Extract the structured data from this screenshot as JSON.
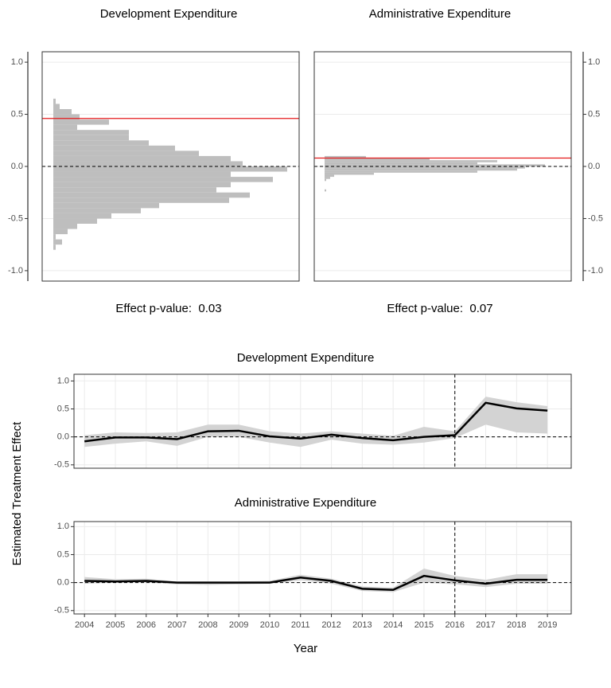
{
  "chart_data": [
    {
      "type": "histogram",
      "title": "Development Expenditure",
      "annotation": "Effect p-value:  0.03",
      "bins": [
        -0.8,
        -0.75,
        -0.7,
        -0.65,
        -0.6,
        -0.55,
        -0.5,
        -0.45,
        -0.4,
        -0.35,
        -0.3,
        -0.25,
        -0.2,
        -0.15,
        -0.1,
        -0.05,
        0,
        0.05,
        0.1,
        0.15,
        0.2,
        0.25,
        0.3,
        0.35,
        0.4,
        0.45,
        0.5,
        0.55,
        0.6,
        0.65
      ],
      "counts": [
        3,
        11,
        3,
        18,
        30,
        55,
        73,
        110,
        133,
        221,
        247,
        205,
        223,
        276,
        223,
        294,
        238,
        223,
        183,
        153,
        120,
        95,
        95,
        30,
        70,
        33,
        23,
        8,
        3
      ],
      "color": "#bebebe",
      "effect": 0.46,
      "effect_color": "#e41a1c",
      "hline": 0,
      "xlim": [
        -14,
        309
      ],
      "ylim": [
        -1.1,
        1.1
      ],
      "yticks": [
        {
          "value": -1,
          "label": "-1.0"
        },
        {
          "value": -0.5,
          "label": "-0.5"
        },
        {
          "value": 0,
          "label": "0.0"
        },
        {
          "value": 0.5,
          "label": "0.5"
        },
        {
          "value": 1,
          "label": "1.0"
        }
      ],
      "yaxis_side": "left",
      "grid": true
    },
    {
      "type": "histogram",
      "title": "Administrative Expenditure",
      "annotation": "Effect p-value:  0.07",
      "bins": [
        -0.24,
        -0.22,
        -0.2,
        -0.18,
        -0.16,
        -0.14,
        -0.12,
        -0.1,
        -0.08,
        -0.06,
        -0.04,
        -0.02,
        0,
        0.02,
        0.04,
        0.06,
        0.08,
        0.1
      ],
      "counts": [
        2,
        0,
        0,
        0,
        0,
        2,
        7,
        12,
        62,
        192,
        242,
        252,
        277,
        192,
        217,
        132,
        52
      ],
      "color": "#bebebe",
      "effect": 0.08,
      "effect_color": "#e41a1c",
      "hline": 0,
      "xlim": [
        -13,
        310
      ],
      "ylim": [
        -1.1,
        1.1
      ],
      "yticks": [
        {
          "value": -1,
          "label": "-1.0"
        },
        {
          "value": -0.5,
          "label": "-0.5"
        },
        {
          "value": 0,
          "label": "0.0"
        },
        {
          "value": 0.5,
          "label": "0.5"
        },
        {
          "value": 1,
          "label": "1.0"
        }
      ],
      "yaxis_side": "right",
      "grid": true
    },
    {
      "type": "line",
      "title": "Development Expenditure",
      "x": [
        2004,
        2005,
        2006,
        2007,
        2008,
        2009,
        2010,
        2011,
        2012,
        2013,
        2014,
        2015,
        2016,
        2017,
        2018,
        2019
      ],
      "values": [
        -0.08,
        -0.01,
        -0.01,
        -0.04,
        0.1,
        0.11,
        0.01,
        -0.03,
        0.04,
        -0.02,
        -0.06,
        0.0,
        0.03,
        0.61,
        0.51,
        0.47
      ],
      "lower": [
        -0.18,
        -0.12,
        -0.08,
        -0.16,
        0.0,
        0.0,
        -0.1,
        -0.18,
        -0.05,
        -0.12,
        -0.14,
        -0.1,
        -0.02,
        0.22,
        0.08,
        0.06
      ],
      "upper": [
        0.03,
        0.08,
        0.07,
        0.08,
        0.22,
        0.22,
        0.1,
        0.06,
        0.1,
        0.06,
        0.02,
        0.18,
        0.1,
        0.72,
        0.62,
        0.55
      ],
      "color": "#000000",
      "band_color": "#d3d3d3",
      "vline": 2016,
      "hline": 0,
      "xlim": [
        2003.66,
        2019.77
      ],
      "ylim": [
        -0.56,
        1.12
      ],
      "xticks": [
        2004,
        2005,
        2006,
        2007,
        2008,
        2009,
        2010,
        2011,
        2012,
        2013,
        2014,
        2015,
        2016,
        2017,
        2018,
        2019
      ],
      "xtick_labels": false,
      "yticks": [
        {
          "value": -0.5,
          "label": "-0.5"
        },
        {
          "value": 0,
          "label": "0.0"
        },
        {
          "value": 0.5,
          "label": "0.5"
        },
        {
          "value": 1,
          "label": "1.0"
        }
      ],
      "grid": true
    },
    {
      "type": "line",
      "title": "Administrative Expenditure",
      "xlabel": "Year",
      "ylabel": "Estimated Treatment Effect",
      "x": [
        2004,
        2005,
        2006,
        2007,
        2008,
        2009,
        2010,
        2011,
        2012,
        2013,
        2014,
        2015,
        2016,
        2017,
        2018,
        2019
      ],
      "values": [
        0.03,
        0.02,
        0.03,
        0.0,
        0.0,
        0.0,
        0.0,
        0.09,
        0.03,
        -0.11,
        -0.13,
        0.12,
        0.04,
        -0.02,
        0.05,
        0.05
      ],
      "lower": [
        -0.02,
        0.0,
        0.0,
        -0.03,
        -0.04,
        -0.03,
        -0.02,
        0.04,
        -0.02,
        -0.15,
        -0.17,
        0.0,
        -0.03,
        -0.08,
        -0.02,
        -0.02
      ],
      "upper": [
        0.1,
        0.06,
        0.07,
        0.02,
        0.02,
        0.02,
        0.03,
        0.14,
        0.07,
        -0.07,
        -0.09,
        0.25,
        0.12,
        0.05,
        0.15,
        0.15
      ],
      "color": "#000000",
      "band_color": "#d3d3d3",
      "vline": 2016,
      "hline": 0,
      "xlim": [
        2003.66,
        2019.77
      ],
      "ylim": [
        -0.56,
        1.09
      ],
      "xticks": [
        2004,
        2005,
        2006,
        2007,
        2008,
        2009,
        2010,
        2011,
        2012,
        2013,
        2014,
        2015,
        2016,
        2017,
        2018,
        2019
      ],
      "xtick_labels": true,
      "yticks": [
        {
          "value": -0.5,
          "label": "-0.5"
        },
        {
          "value": 0,
          "label": "0.0"
        },
        {
          "value": 0.5,
          "label": "0.5"
        },
        {
          "value": 1,
          "label": "1.0"
        }
      ],
      "grid": true
    }
  ]
}
